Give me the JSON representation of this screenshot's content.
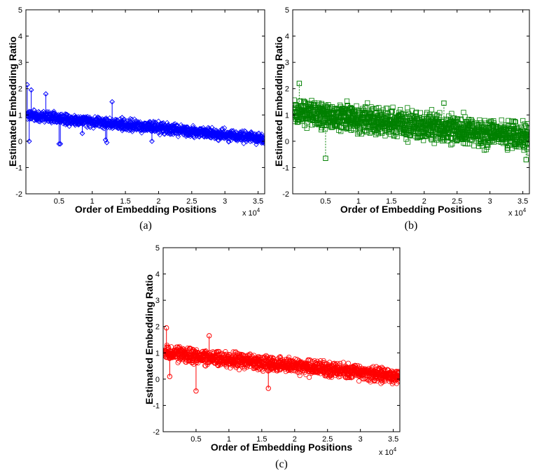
{
  "chart_data": [
    {
      "id": "a",
      "type": "scatter",
      "panel_label": "(a)",
      "marker": "diamond",
      "color": "#0000ff",
      "xlabel": "Order of Embedding Positions",
      "ylabel": "Estimated Embedding Ratio",
      "x_multiplier": "x 10",
      "x_multiplier_exp": "4",
      "xlim": [
        0,
        3.6
      ],
      "ylim": [
        -2,
        5
      ],
      "xticks": [
        0.5,
        1,
        1.5,
        2,
        2.5,
        3,
        3.5
      ],
      "xtick_labels": [
        "0.5",
        "1",
        "1.5",
        "2",
        "2.5",
        "3",
        "3.5"
      ],
      "yticks": [
        -2,
        -1,
        0,
        1,
        2,
        3,
        4,
        5
      ],
      "ytick_labels": [
        "-2",
        "-1",
        "0",
        "1",
        "2",
        "3",
        "4",
        "5"
      ],
      "trend": {
        "x": [
          0,
          3.6
        ],
        "y": [
          1.0,
          0.1
        ]
      },
      "spread": 0.3,
      "outliers": [
        {
          "x": 0.02,
          "y": 2.15
        },
        {
          "x": 0.08,
          "y": 1.95
        },
        {
          "x": 0.05,
          "y": 0.0
        },
        {
          "x": 0.3,
          "y": 1.8
        },
        {
          "x": 0.5,
          "y": -0.1
        },
        {
          "x": 0.52,
          "y": -0.1
        },
        {
          "x": 1.3,
          "y": 1.5
        },
        {
          "x": 1.45,
          "y": 0.9
        },
        {
          "x": 1.2,
          "y": 0.05
        },
        {
          "x": 1.22,
          "y": -0.05
        },
        {
          "x": 0.85,
          "y": 0.3
        },
        {
          "x": 1.9,
          "y": 0.0
        }
      ]
    },
    {
      "id": "b",
      "type": "scatter",
      "panel_label": "(b)",
      "marker": "square",
      "color": "#008000",
      "xlabel": "Order of Embedding Positions",
      "ylabel": "Estimated Embedding Ratio",
      "x_multiplier": "x 10",
      "x_multiplier_exp": "4",
      "xlim": [
        0,
        3.6
      ],
      "ylim": [
        -2,
        5
      ],
      "xticks": [
        0.5,
        1,
        1.5,
        2,
        2.5,
        3,
        3.5
      ],
      "xtick_labels": [
        "0.5",
        "1",
        "1.5",
        "2",
        "2.5",
        "3",
        "3.5"
      ],
      "yticks": [
        -2,
        -1,
        0,
        1,
        2,
        3,
        4,
        5
      ],
      "ytick_labels": [
        "-2",
        "-1",
        "0",
        "1",
        "2",
        "3",
        "4",
        "5"
      ],
      "trend": {
        "x": [
          0,
          3.6
        ],
        "y": [
          1.1,
          0.15
        ]
      },
      "spread": 0.75,
      "outliers": [
        {
          "x": 0.5,
          "y": -0.65
        },
        {
          "x": 0.1,
          "y": 2.2
        },
        {
          "x": 2.3,
          "y": 1.45
        },
        {
          "x": 3.55,
          "y": -0.7
        }
      ]
    },
    {
      "id": "c",
      "type": "scatter",
      "panel_label": "(c)",
      "marker": "circle",
      "color": "#ff0000",
      "xlabel": "Order of Embedding Positions",
      "ylabel": "Estimated Embedding Ratio",
      "x_multiplier": "x 10",
      "x_multiplier_exp": "4",
      "xlim": [
        0,
        3.6
      ],
      "ylim": [
        -2,
        5
      ],
      "xticks": [
        0.5,
        1,
        1.5,
        2,
        2.5,
        3,
        3.5
      ],
      "xtick_labels": [
        "0.5",
        "1",
        "1.5",
        "2",
        "2.5",
        "3",
        "3.5"
      ],
      "yticks": [
        -2,
        -1,
        0,
        1,
        2,
        3,
        4,
        5
      ],
      "ytick_labels": [
        "-2",
        "-1",
        "0",
        "1",
        "2",
        "3",
        "4",
        "5"
      ],
      "trend": {
        "x": [
          0,
          3.6
        ],
        "y": [
          1.0,
          0.1
        ]
      },
      "spread": 0.4,
      "outliers": [
        {
          "x": 0.05,
          "y": 1.95
        },
        {
          "x": 0.5,
          "y": -0.45
        },
        {
          "x": 0.7,
          "y": 1.65
        },
        {
          "x": 1.6,
          "y": -0.35
        },
        {
          "x": 0.1,
          "y": 0.1
        }
      ]
    }
  ]
}
